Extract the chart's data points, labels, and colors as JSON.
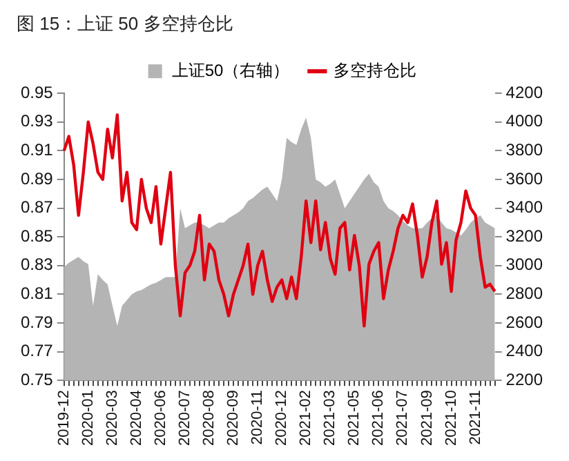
{
  "chart_data": {
    "type": "line",
    "title": "图 15：上证 50 多空持仓比",
    "categories": [
      "2019-12",
      null,
      null,
      null,
      null,
      "2020-01",
      null,
      null,
      null,
      null,
      "2020-03",
      null,
      null,
      null,
      null,
      "2020-04",
      null,
      null,
      null,
      null,
      "2020-06",
      null,
      null,
      null,
      null,
      "2020-07",
      null,
      null,
      null,
      null,
      "2020-08",
      null,
      null,
      null,
      null,
      "2020-09",
      null,
      null,
      null,
      null,
      "2020-11",
      null,
      null,
      null,
      null,
      "2020-12",
      null,
      null,
      null,
      null,
      "2021-02",
      null,
      null,
      null,
      null,
      "2021-03",
      null,
      null,
      null,
      null,
      "2021-05",
      null,
      null,
      null,
      null,
      "2021-06",
      null,
      null,
      null,
      null,
      "2021-07",
      null,
      null,
      null,
      null,
      "2021-09",
      null,
      null,
      null,
      null,
      "2021-10",
      null,
      null,
      null,
      null,
      "2021-11",
      null,
      null,
      null,
      null
    ],
    "series": [
      {
        "name": "上证50（右轴）",
        "type": "area",
        "axis": "y2",
        "color": "#b4b4b4",
        "values": [
          2990,
          3020,
          3040,
          3060,
          3030,
          3010,
          2720,
          2940,
          2900,
          2870,
          2720,
          2580,
          2720,
          2760,
          2800,
          2820,
          2830,
          2850,
          2870,
          2880,
          2900,
          2920,
          2920,
          2920,
          3400,
          3260,
          3280,
          3300,
          3300,
          3280,
          3260,
          3280,
          3300,
          3300,
          3330,
          3350,
          3370,
          3400,
          3450,
          3470,
          3500,
          3530,
          3550,
          3500,
          3450,
          3600,
          3890,
          3860,
          3840,
          3950,
          4030,
          3890,
          3600,
          3580,
          3550,
          3570,
          3600,
          3500,
          3400,
          3450,
          3500,
          3550,
          3600,
          3640,
          3580,
          3550,
          3450,
          3400,
          3380,
          3350,
          3310,
          3280,
          3260,
          3260,
          3260,
          3300,
          3330,
          3350,
          3300,
          3260,
          3250,
          3230,
          3210,
          3250,
          3300,
          3330,
          3350,
          3300,
          3280,
          3260
        ]
      },
      {
        "name": "多空持仓比",
        "type": "line",
        "color": "#e00012",
        "values": [
          0.91,
          0.92,
          0.9,
          0.865,
          0.895,
          0.93,
          0.915,
          0.895,
          0.89,
          0.925,
          0.905,
          0.935,
          0.875,
          0.895,
          0.86,
          0.855,
          0.89,
          0.87,
          0.86,
          0.885,
          0.845,
          0.87,
          0.895,
          0.83,
          0.795,
          0.825,
          0.83,
          0.84,
          0.865,
          0.82,
          0.845,
          0.84,
          0.82,
          0.81,
          0.795,
          0.81,
          0.82,
          0.83,
          0.845,
          0.81,
          0.83,
          0.84,
          0.82,
          0.805,
          0.815,
          0.82,
          0.807,
          0.822,
          0.807,
          0.836,
          0.875,
          0.846,
          0.875,
          0.841,
          0.86,
          0.835,
          0.824,
          0.856,
          0.86,
          0.827,
          0.851,
          0.83,
          0.788,
          0.831,
          0.84,
          0.846,
          0.807,
          0.827,
          0.84,
          0.856,
          0.865,
          0.86,
          0.873,
          0.851,
          0.822,
          0.836,
          0.86,
          0.875,
          0.831,
          0.846,
          0.812,
          0.848,
          0.86,
          0.882,
          0.87,
          0.865,
          0.836,
          0.815,
          0.817,
          0.812
        ]
      }
    ],
    "ylim": [
      0.75,
      0.95
    ],
    "yticks": [
      0.75,
      0.77,
      0.79,
      0.81,
      0.83,
      0.85,
      0.87,
      0.89,
      0.91,
      0.93,
      0.95
    ],
    "y2lim": [
      2200,
      4200
    ],
    "y2ticks": [
      2200,
      2400,
      2600,
      2800,
      3000,
      3200,
      3400,
      3600,
      3800,
      4000,
      4200
    ],
    "legend": "top",
    "grid": false
  }
}
